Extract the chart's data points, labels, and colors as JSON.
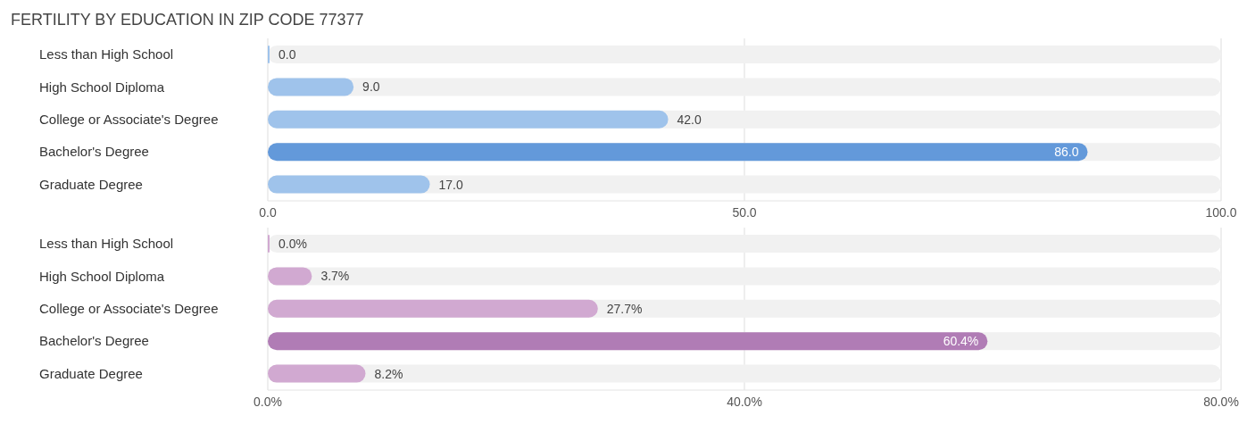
{
  "chart_data": [
    {
      "type": "bar",
      "title": "FERTILITY BY EDUCATION IN ZIP CODE 77377",
      "orientation": "horizontal",
      "categories": [
        "Less than High School",
        "High School Diploma",
        "College or Associate's Degree",
        "Bachelor's Degree",
        "Graduate Degree"
      ],
      "values": [
        0.0,
        9.0,
        42.0,
        86.0,
        17.0
      ],
      "value_labels": [
        "0.0",
        "9.0",
        "42.0",
        "86.0",
        "17.0"
      ],
      "colors": [
        "#9fc3eb",
        "#9fc3eb",
        "#9fc3eb",
        "#6399da",
        "#9fc3eb"
      ],
      "xlim": [
        0,
        100
      ],
      "xticks": [
        {
          "value": 0,
          "label": "0.0"
        },
        {
          "value": 50,
          "label": "50.0"
        },
        {
          "value": 100,
          "label": "100.0"
        }
      ],
      "grid": "x"
    },
    {
      "type": "bar",
      "orientation": "horizontal",
      "categories": [
        "Less than High School",
        "High School Diploma",
        "College or Associate's Degree",
        "Bachelor's Degree",
        "Graduate Degree"
      ],
      "values": [
        0.0,
        3.7,
        27.7,
        60.4,
        8.2
      ],
      "value_labels": [
        "0.0%",
        "3.7%",
        "27.7%",
        "60.4%",
        "8.2%"
      ],
      "colors": [
        "#d1a9d1",
        "#d1a9d1",
        "#d1a9d1",
        "#b07cb5",
        "#d1a9d1"
      ],
      "xlim": [
        0,
        80
      ],
      "xticks": [
        {
          "value": 0,
          "label": "0.0%"
        },
        {
          "value": 40,
          "label": "40.0%"
        },
        {
          "value": 80,
          "label": "80.0%"
        }
      ],
      "grid": "x"
    }
  ]
}
